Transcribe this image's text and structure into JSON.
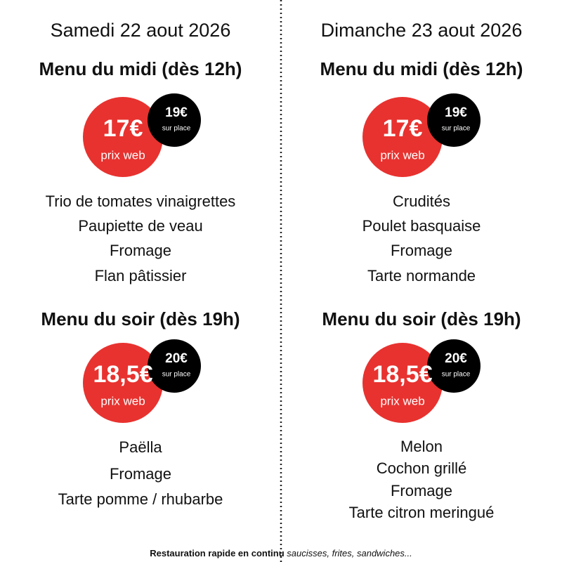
{
  "days": [
    {
      "date": "Samedi 22 aout 2026",
      "menus": [
        {
          "title": "Menu du midi (dès 12h)",
          "price_web": "17€",
          "price_web_label": "prix web",
          "price_place": "19€",
          "price_place_label": "sur place",
          "items": [
            "Trio de tomates vinaigrettes",
            "Paupiette de veau",
            "Fromage",
            "Flan pâtissier"
          ]
        },
        {
          "title": "Menu du soir (dès 19h)",
          "price_web": "18,5€",
          "price_web_label": "prix web",
          "price_place": "20€",
          "price_place_label": "sur place",
          "items": [
            "Paëlla",
            "Fromage",
            "Tarte pomme / rhubarbe"
          ]
        }
      ]
    },
    {
      "date": "Dimanche 23 aout 2026",
      "menus": [
        {
          "title": "Menu du midi (dès 12h)",
          "price_web": "17€",
          "price_web_label": "prix web",
          "price_place": "19€",
          "price_place_label": "sur place",
          "items": [
            "Crudités",
            "Poulet basquaise",
            "Fromage",
            "Tarte normande"
          ]
        },
        {
          "title": "Menu du soir (dès 19h)",
          "price_web": "18,5€",
          "price_web_label": "prix web",
          "price_place": "20€",
          "price_place_label": "sur place",
          "items": [
            "Melon",
            "Cochon grillé",
            "Fromage",
            "Tarte citron meringué"
          ]
        }
      ]
    }
  ],
  "footer": {
    "bold": "Restauration rapide en continu",
    "italic": "saucisses, frites, sandwiches..."
  }
}
